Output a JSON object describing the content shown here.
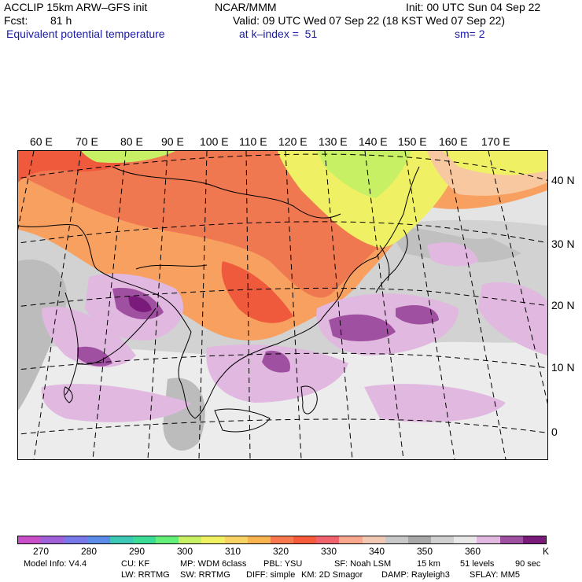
{
  "header": {
    "model_title": "ACCLIP 15km ARW–GFS init",
    "org": "NCAR/MMM",
    "init": "Init: 00 UTC Sun 04 Sep 22",
    "fcst_label": "Fcst:",
    "fcst_value": "81 h",
    "valid": "Valid: 09 UTC Wed 07 Sep 22 (18 KST Wed 07 Sep 22)",
    "field": "Equivalent potential temperature",
    "level": "at k–index =  51",
    "smooth": "sm= 2"
  },
  "map": {
    "lon_labels": [
      "60 E",
      "70 E",
      "80 E",
      "90 E",
      "100 E",
      "110 E",
      "120 E",
      "130 E",
      "140 E",
      "150 E",
      "160 E",
      "170 E"
    ],
    "lat_labels": [
      "40 N",
      "30 N",
      "20 N",
      "10 N",
      "0"
    ]
  },
  "colorbar": {
    "colors": [
      "#c84fc8",
      "#a060d8",
      "#7878e8",
      "#5a8ce8",
      "#3cc8b4",
      "#3cdc96",
      "#64f078",
      "#c8f064",
      "#f0f064",
      "#f8d264",
      "#f8b450",
      "#f87850",
      "#f85a3c",
      "#f0646e",
      "#f8a88c",
      "#f0c8b4",
      "#c8c8c8",
      "#a8a8a8",
      "#d0d0d0",
      "#e8e8e8",
      "#e0b8e0",
      "#a050a0",
      "#7a1a7a"
    ],
    "ticks": [
      "270",
      "280",
      "290",
      "300",
      "310",
      "320",
      "330",
      "340",
      "350",
      "360"
    ],
    "unit": "K"
  },
  "footer": {
    "line1": [
      "Model Info: V4.4",
      "CU: KF",
      "MP: WDM 6class",
      "PBL: YSU",
      "SF: Noah LSM",
      "15 km",
      "51 levels",
      "90 sec"
    ],
    "line2": [
      "LW: RRTMG",
      "SW: RRTMG",
      "DIFF: simple",
      "KM: 2D Smagor",
      "DAMP: Rayleigh3",
      "SFLAY: MM5"
    ]
  }
}
